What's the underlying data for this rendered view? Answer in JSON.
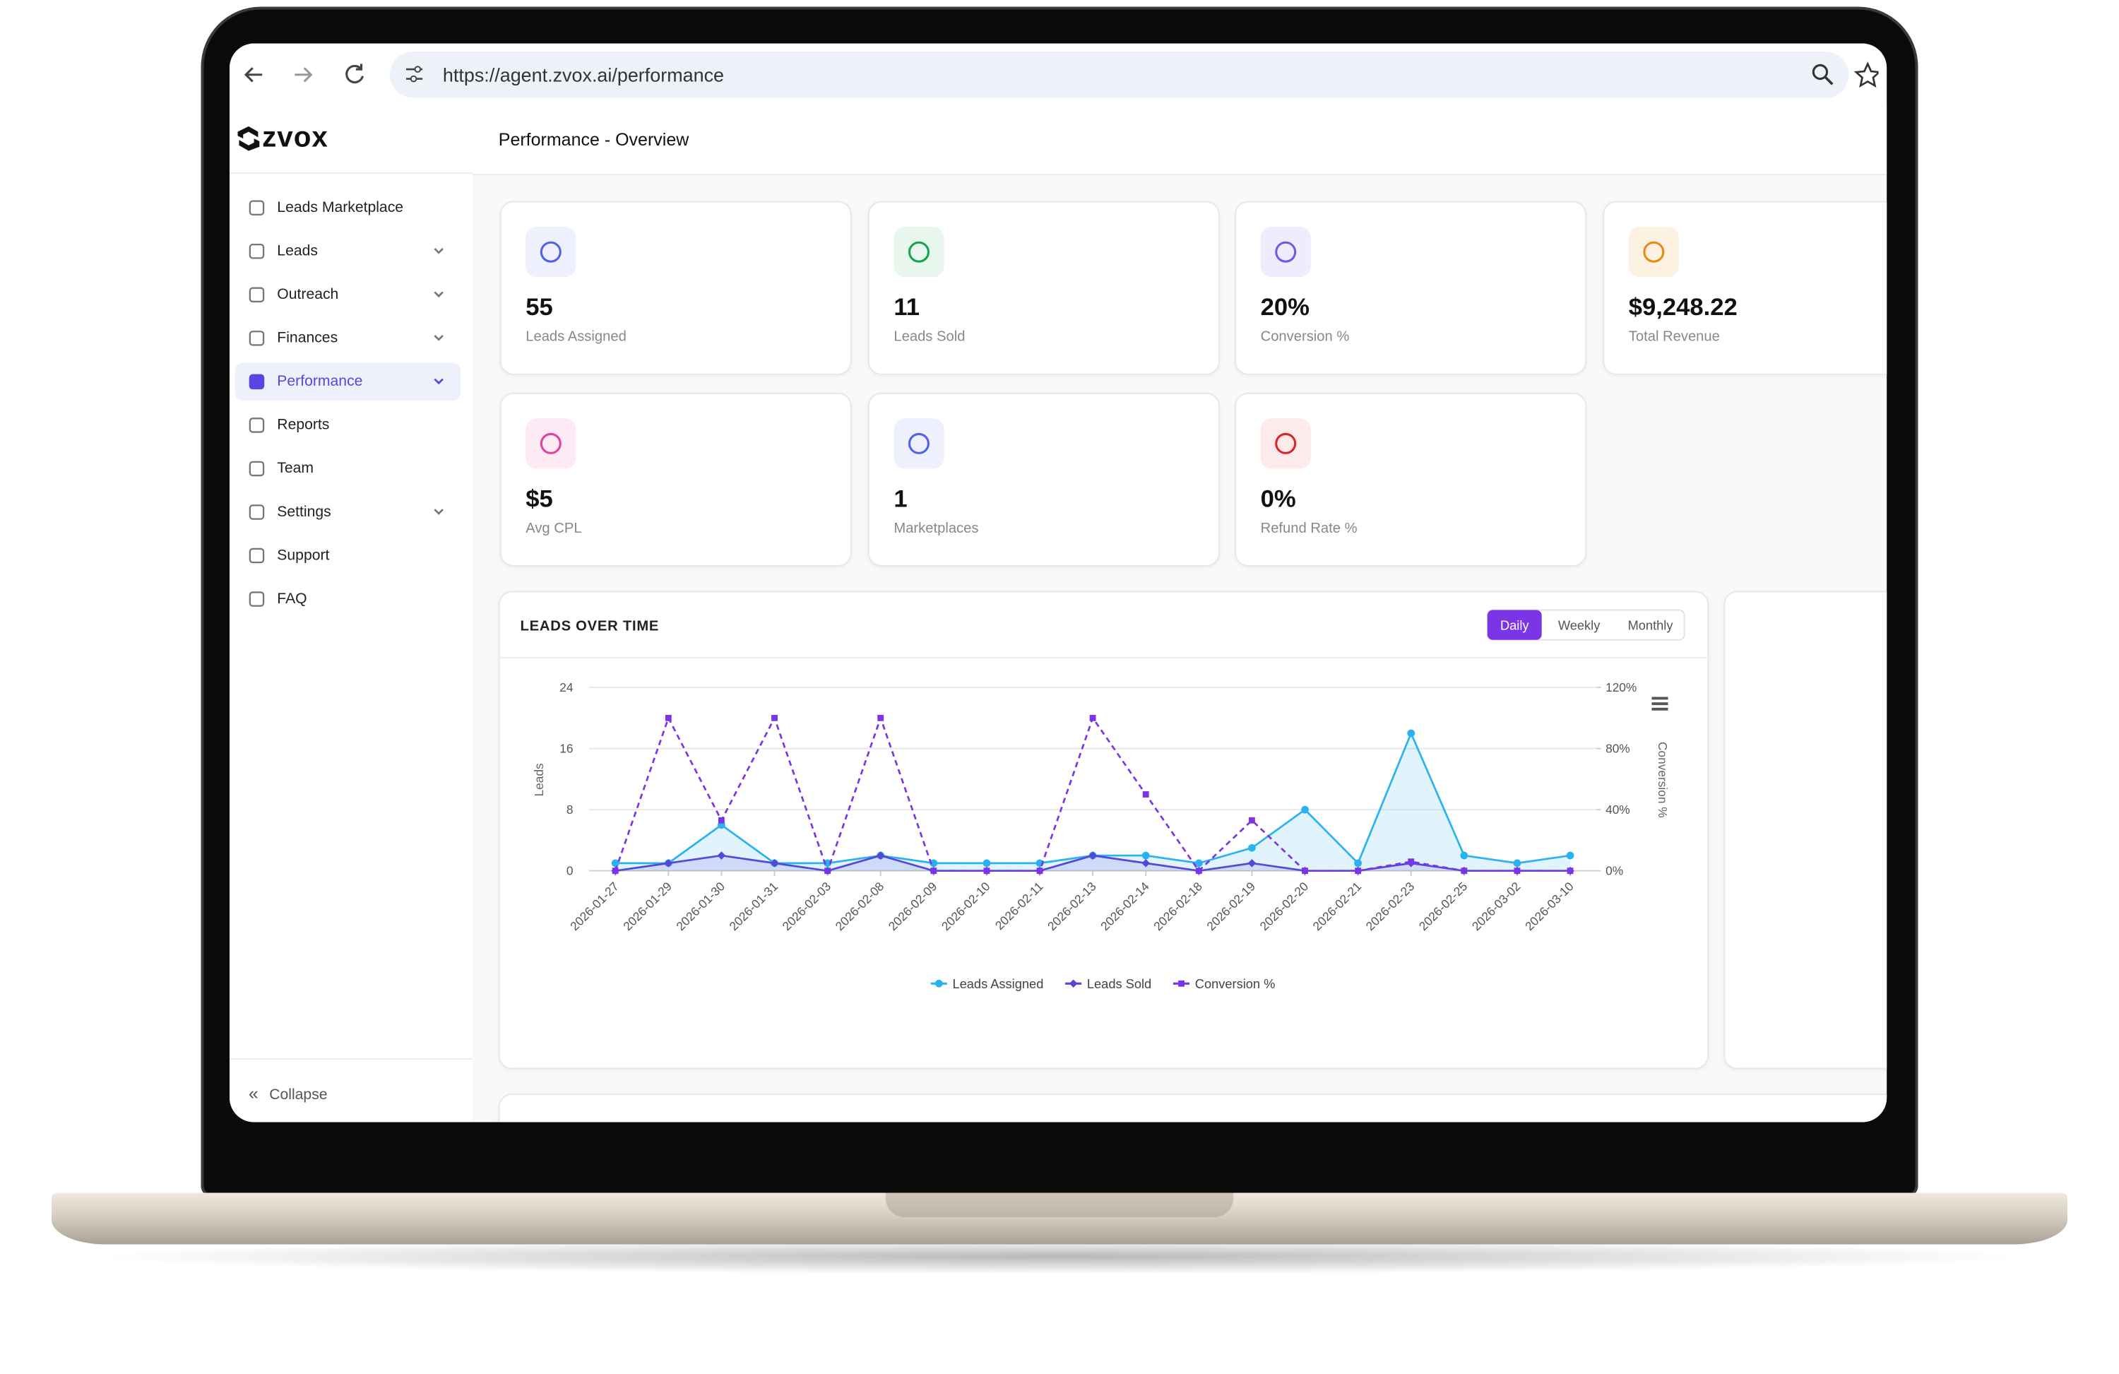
{
  "browser": {
    "url": "https://agent.zvox.ai/performance"
  },
  "sidebar": {
    "logo": "zvox",
    "items": [
      {
        "label": "Leads Marketplace",
        "has_submenu": false
      },
      {
        "label": "Leads",
        "has_submenu": true
      },
      {
        "label": "Outreach",
        "has_submenu": true
      },
      {
        "label": "Finances",
        "has_submenu": true
      },
      {
        "label": "Performance",
        "has_submenu": true,
        "active": true
      },
      {
        "label": "Reports",
        "has_submenu": false
      },
      {
        "label": "Team",
        "has_submenu": false
      },
      {
        "label": "Settings",
        "has_submenu": true
      },
      {
        "label": "Support",
        "has_submenu": false
      },
      {
        "label": "FAQ",
        "has_submenu": false
      }
    ],
    "collapse": "Collapse"
  },
  "header": {
    "title": "Performance - Overview"
  },
  "cards": [
    {
      "value": "55",
      "label": "Leads Assigned",
      "accent": "#4f63e6",
      "tint": "#eef0fd"
    },
    {
      "value": "11",
      "label": "Leads Sold",
      "accent": "#16a34a",
      "tint": "#e8f7ee"
    },
    {
      "value": "20%",
      "label": "Conversion %",
      "accent": "#6d5be8",
      "tint": "#efedfd"
    },
    {
      "value": "$9,248.22",
      "label": "Total Revenue",
      "accent": "#e58a12",
      "tint": "#fdf1e2"
    },
    {
      "value": "$5",
      "label": "Avg CPL",
      "accent": "#e0449a",
      "tint": "#fdeaf4"
    },
    {
      "value": "1",
      "label": "Marketplaces",
      "accent": "#4f63e6",
      "tint": "#eef0fd"
    },
    {
      "value": "0%",
      "label": "Refund Rate %",
      "accent": "#dc2626",
      "tint": "#fdeaea"
    }
  ],
  "chart_controls": [
    "Daily",
    "Weekly",
    "Monthly"
  ],
  "chart_data": {
    "type": "line",
    "title": "LEADS OVER TIME",
    "y_label": "Leads",
    "y2_label": "Conversion %",
    "categories": [
      "2026-01-27",
      "2026-01-29",
      "2026-01-30",
      "2026-01-31",
      "2026-02-03",
      "2026-02-08",
      "2026-02-09",
      "2026-02-10",
      "2026-02-11",
      "2026-02-13",
      "2026-02-14",
      "2026-02-18",
      "2026-02-19",
      "2026-02-20",
      "2026-02-21",
      "2026-02-23",
      "2026-02-25",
      "2026-03-02",
      "2026-03-10"
    ],
    "series": [
      {
        "name": "Leads Assigned",
        "color": "#29b3ee",
        "area": true,
        "marker": "circle",
        "values": [
          1,
          1,
          6,
          1,
          1,
          2,
          1,
          1,
          1,
          2,
          2,
          1,
          3,
          8,
          1,
          18,
          2,
          1,
          2
        ]
      },
      {
        "name": "Leads Sold",
        "color": "#5548d9",
        "area": true,
        "marker": "diamond",
        "values": [
          0,
          1,
          2,
          1,
          0,
          2,
          0,
          0,
          0,
          2,
          1,
          0,
          1,
          0,
          0,
          1,
          0,
          0,
          0
        ]
      },
      {
        "name": "Conversion %",
        "color": "#7b35e6",
        "dashed": true,
        "marker": "square",
        "axis": "y2",
        "values": [
          0,
          100,
          33,
          100,
          0,
          100,
          0,
          0,
          0,
          100,
          50,
          0,
          33,
          0,
          0,
          6,
          0,
          0,
          0
        ]
      }
    ],
    "ylim": [
      0,
      24
    ],
    "yticks": [
      0,
      8,
      16,
      24
    ],
    "y2lim": [
      0,
      120
    ],
    "y2ticks": [
      {
        "value": 0,
        "label": "0%"
      },
      {
        "value": 40,
        "label": "40%"
      },
      {
        "value": 80,
        "label": "80%"
      },
      {
        "value": 120,
        "label": "120%"
      }
    ],
    "grid": true
  }
}
